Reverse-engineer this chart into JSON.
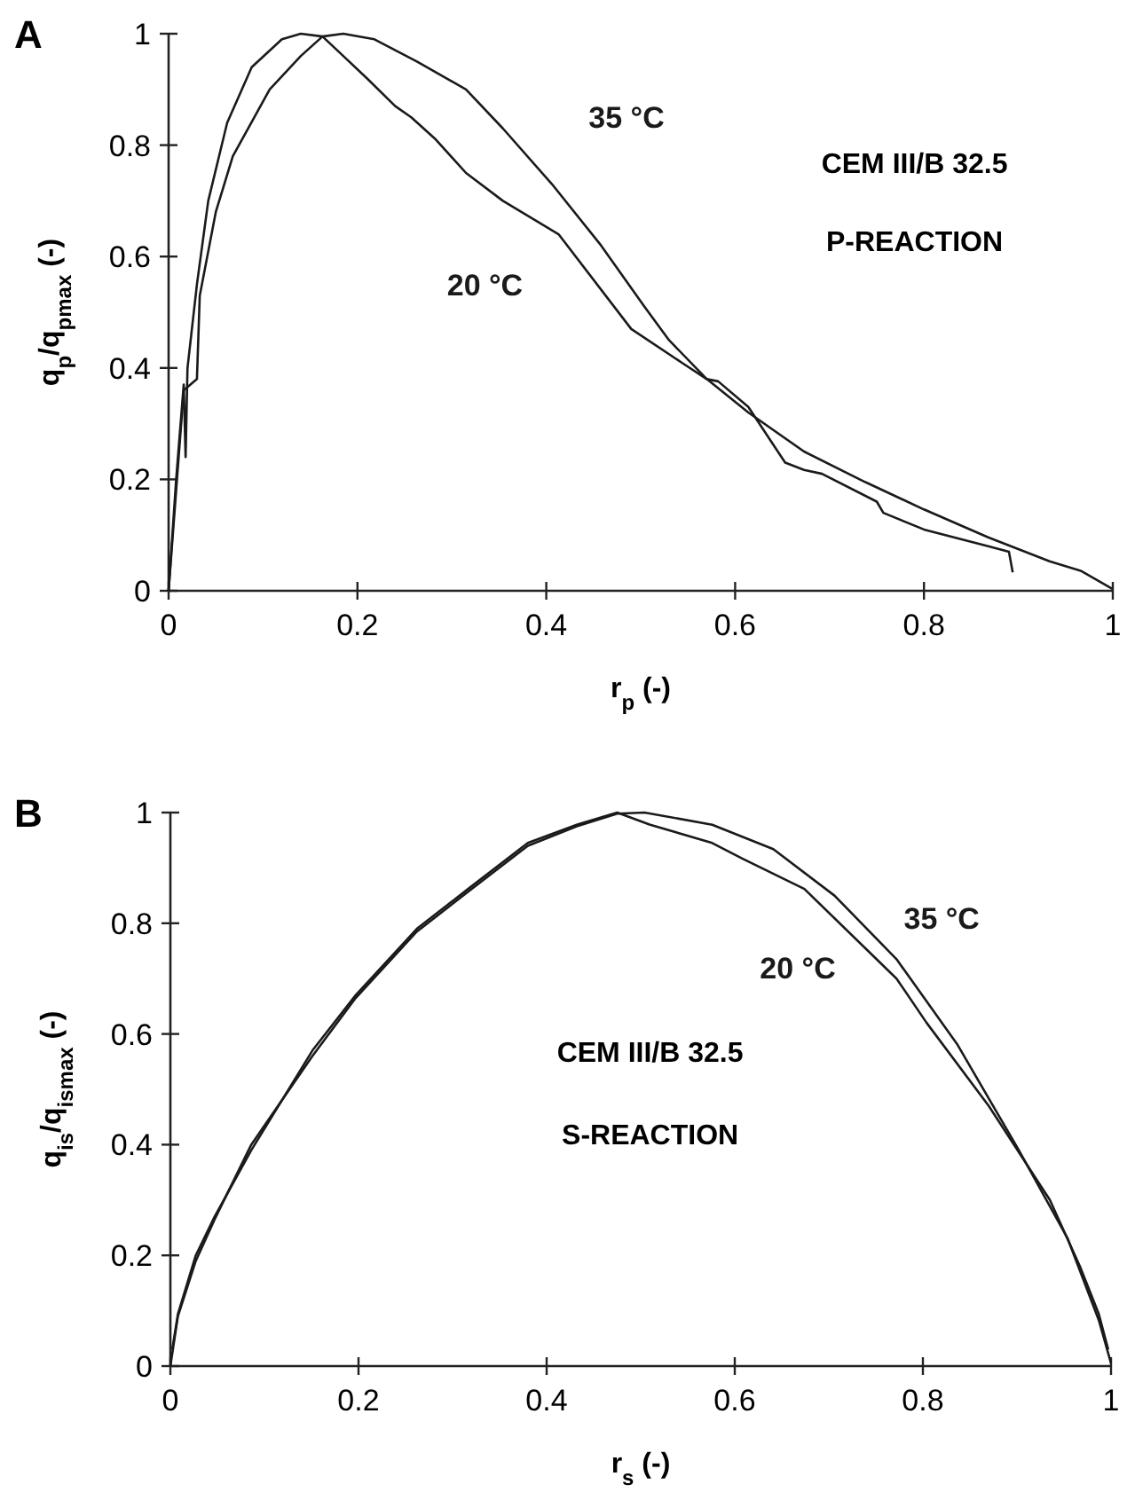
{
  "chart_data": [
    {
      "type": "line",
      "title": "CEM III/B 32.5",
      "subtitle": "P-REACTION",
      "xlabel": "r$_{p}$ (-)",
      "ylabel": "q$_{p}$/q$_{pmax}$ (-)",
      "xlim": [
        0,
        1
      ],
      "ylim": [
        0,
        1
      ],
      "xticks": [
        0,
        0.2,
        0.4,
        0.6,
        0.8,
        1
      ],
      "yticks": [
        0,
        0.2,
        0.4,
        0.6,
        0.8,
        1
      ],
      "grid": false,
      "annotations": [
        "A"
      ],
      "series": [
        {
          "name": "20 °C",
          "color": "#1a1a1a",
          "x": [
            0,
            0.008,
            0.016,
            0.018,
            0.02,
            0.03,
            0.042,
            0.062,
            0.088,
            0.12,
            0.14,
            0.163,
            0.185,
            0.21,
            0.24,
            0.257,
            0.283,
            0.315,
            0.354,
            0.413,
            0.49,
            0.543,
            0.57,
            0.582,
            0.614,
            0.653,
            0.673,
            0.692,
            0.75,
            0.757,
            0.8,
            0.868,
            0.89,
            0.894
          ],
          "values": [
            0,
            0.2,
            0.37,
            0.24,
            0.4,
            0.55,
            0.7,
            0.84,
            0.94,
            0.99,
            1,
            0.995,
            0.96,
            0.92,
            0.87,
            0.85,
            0.81,
            0.75,
            0.7,
            0.64,
            0.47,
            0.41,
            0.38,
            0.376,
            0.33,
            0.23,
            0.217,
            0.21,
            0.16,
            0.14,
            0.11,
            0.08,
            0.07,
            0.033
          ]
        },
        {
          "name": "35 °C",
          "color": "#1a1a1a",
          "x": [
            0,
            0.008,
            0.016,
            0.03,
            0.033,
            0.05,
            0.068,
            0.107,
            0.14,
            0.163,
            0.185,
            0.218,
            0.263,
            0.315,
            0.354,
            0.406,
            0.458,
            0.504,
            0.53,
            0.57,
            0.614,
            0.673,
            0.738,
            0.8,
            0.868,
            0.933,
            0.966,
            1
          ],
          "values": [
            0,
            0.18,
            0.36,
            0.38,
            0.53,
            0.68,
            0.78,
            0.9,
            0.96,
            0.995,
            1,
            0.99,
            0.95,
            0.9,
            0.83,
            0.73,
            0.62,
            0.51,
            0.45,
            0.38,
            0.32,
            0.25,
            0.195,
            0.146,
            0.096,
            0.053,
            0.036,
            0.003
          ]
        }
      ]
    },
    {
      "type": "line",
      "title": "CEM III/B 32.5",
      "subtitle": "S-REACTION",
      "xlabel": "r$_{s}$ (-)",
      "ylabel": "q$_{is}$/q$_{ismax}$ (-)",
      "xlim": [
        0,
        1
      ],
      "ylim": [
        0,
        1
      ],
      "xticks": [
        0,
        0.2,
        0.4,
        0.6,
        0.8,
        1
      ],
      "yticks": [
        0,
        0.2,
        0.4,
        0.6,
        0.8,
        1
      ],
      "grid": false,
      "annotations": [
        "B"
      ],
      "series": [
        {
          "name": "20 °C",
          "color": "#1a1a1a",
          "x": [
            0.002,
            0.008,
            0.027,
            0.047,
            0.086,
            0.151,
            0.197,
            0.262,
            0.315,
            0.38,
            0.432,
            0.475,
            0.51,
            0.576,
            0.608,
            0.674,
            0.772,
            0.804,
            0.87,
            0.935,
            0.967,
            0.987,
            0.997
          ],
          "values": [
            0.03,
            0.094,
            0.2,
            0.27,
            0.39,
            0.57,
            0.67,
            0.79,
            0.86,
            0.945,
            0.978,
            1,
            0.978,
            0.945,
            0.917,
            0.862,
            0.7,
            0.62,
            0.47,
            0.3,
            0.18,
            0.094,
            0.03
          ]
        },
        {
          "name": "35 °C",
          "color": "#1a1a1a",
          "x": [
            0,
            0.008,
            0.027,
            0.047,
            0.086,
            0.151,
            0.197,
            0.262,
            0.315,
            0.38,
            0.432,
            0.475,
            0.504,
            0.576,
            0.641,
            0.706,
            0.772,
            0.837,
            0.902,
            0.954,
            0.987,
            1
          ],
          "values": [
            0,
            0.09,
            0.19,
            0.265,
            0.4,
            0.56,
            0.665,
            0.785,
            0.855,
            0.94,
            0.975,
            0.998,
            1,
            0.978,
            0.934,
            0.85,
            0.735,
            0.58,
            0.39,
            0.23,
            0.083,
            0.005
          ]
        }
      ]
    }
  ]
}
